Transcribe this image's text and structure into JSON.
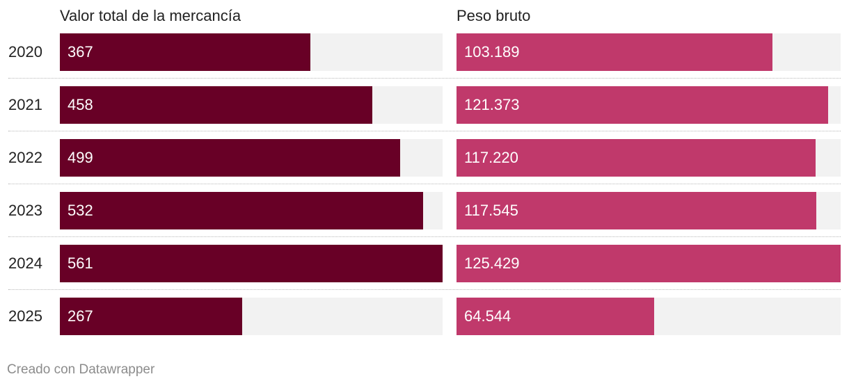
{
  "chart_data": {
    "type": "bar",
    "orientation": "horizontal",
    "categories": [
      "2020",
      "2021",
      "2022",
      "2023",
      "2024",
      "2025"
    ],
    "series": [
      {
        "name": "Valor total de la mercancía",
        "values": [
          367,
          458,
          499,
          532,
          561,
          267
        ],
        "labels": [
          "367",
          "458",
          "499",
          "532",
          "561",
          "267"
        ],
        "color": "#680026",
        "xlim": [
          0,
          561
        ]
      },
      {
        "name": "Peso bruto",
        "values": [
          103189,
          121373,
          117220,
          117545,
          125429,
          64544
        ],
        "labels": [
          "103.189",
          "121.373",
          "117.220",
          "117.545",
          "125.429",
          "64.544"
        ],
        "color": "#c0396b",
        "xlim": [
          0,
          125429
        ]
      }
    ],
    "track_color": "#f2f2f2"
  },
  "footer": {
    "credit": "Creado con Datawrapper"
  }
}
